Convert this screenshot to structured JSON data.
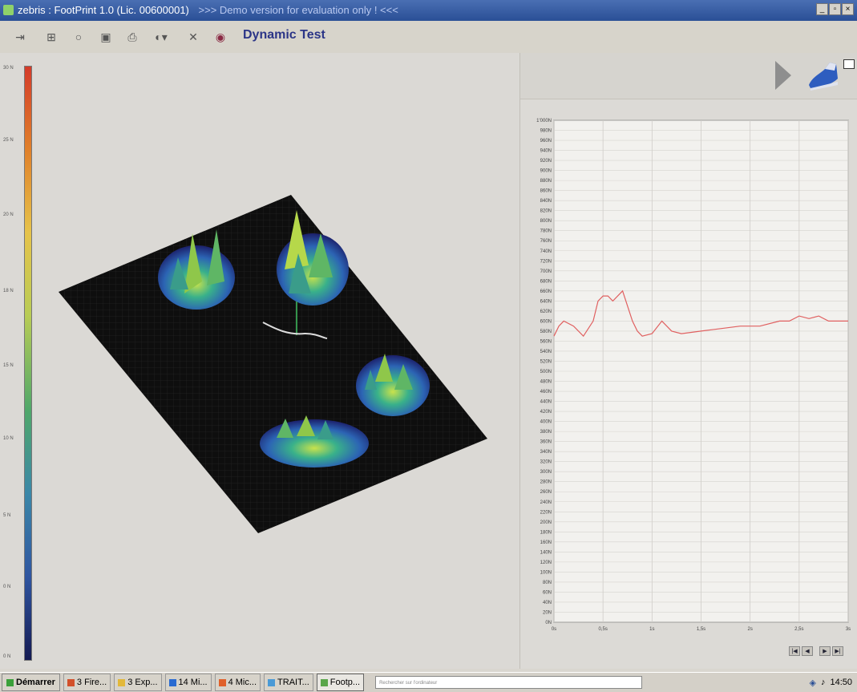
{
  "window": {
    "title": "zebris : FootPrint 1.0 (Lic. 00600001)",
    "notice": ">>> Demo version for evaluation only ! <<<",
    "buttons": [
      "_",
      "▫",
      "×"
    ]
  },
  "toolbar": {
    "title": "Dynamic Test",
    "icons": [
      "exit-icon",
      "grid-icon",
      "circle-icon",
      "save-icon",
      "print-icon",
      "dropdown-icon",
      "settings-icon",
      "record-icon"
    ]
  },
  "scale": {
    "ticks": [
      "30 N",
      "25 N",
      "20 N",
      "18 N",
      "15 N",
      "10 N",
      "5 N",
      "0 N",
      "0 N"
    ]
  },
  "chart_data": {
    "type": "line",
    "series": [
      {
        "color": "#e06060",
        "x": [
          0,
          0.05,
          0.1,
          0.2,
          0.3,
          0.4,
          0.45,
          0.5,
          0.55,
          0.6,
          0.7,
          0.8,
          0.85,
          0.9,
          1.0,
          1.1,
          1.2,
          1.3,
          1.5,
          1.7,
          1.9,
          2.1,
          2.3,
          2.4,
          2.5,
          2.6,
          2.7,
          2.8,
          3.0
        ],
        "y": [
          570,
          590,
          600,
          590,
          570,
          600,
          640,
          650,
          650,
          640,
          660,
          600,
          580,
          570,
          575,
          600,
          580,
          575,
          580,
          585,
          590,
          590,
          600,
          600,
          610,
          605,
          610,
          600,
          600
        ]
      }
    ],
    "yticks": [
      "1'000N",
      "980N",
      "960N",
      "940N",
      "920N",
      "900N",
      "880N",
      "860N",
      "840N",
      "820N",
      "800N",
      "780N",
      "760N",
      "740N",
      "720N",
      "700N",
      "680N",
      "660N",
      "640N",
      "620N",
      "600N",
      "580N",
      "560N",
      "540N",
      "520N",
      "500N",
      "480N",
      "460N",
      "440N",
      "420N",
      "400N",
      "380N",
      "360N",
      "340N",
      "320N",
      "300N",
      "280N",
      "260N",
      "240N",
      "220N",
      "200N",
      "180N",
      "160N",
      "140N",
      "120N",
      "100N",
      "80N",
      "60N",
      "40N",
      "20N",
      "0N"
    ],
    "xticks": [
      "0s",
      "0,5s",
      "1s",
      "1,5s",
      "2s",
      "2,5s",
      "3s"
    ],
    "ylim": [
      0,
      1000
    ],
    "xlim": [
      0,
      3
    ],
    "grid": true
  },
  "taskbar": {
    "start": "Démarrer",
    "items": [
      {
        "label": "3 Fire...",
        "color": "#d2502a",
        "active": false
      },
      {
        "label": "3 Exp...",
        "color": "#e2b83a",
        "active": false
      },
      {
        "label": "14 Mi...",
        "color": "#2a6bd1",
        "active": false
      },
      {
        "label": "4 Mic...",
        "color": "#e0602a",
        "active": false
      },
      {
        "label": "TRAIT...",
        "color": "#4a9ad6",
        "active": false
      },
      {
        "label": "Footp...",
        "color": "#5aa64a",
        "active": true
      }
    ],
    "search_placeholder": "Rechercher sur l'ordinateur",
    "clock": "14:50"
  },
  "nav": {
    "buttons": [
      "first-icon",
      "prev-icon",
      "next-icon",
      "last-icon"
    ]
  }
}
